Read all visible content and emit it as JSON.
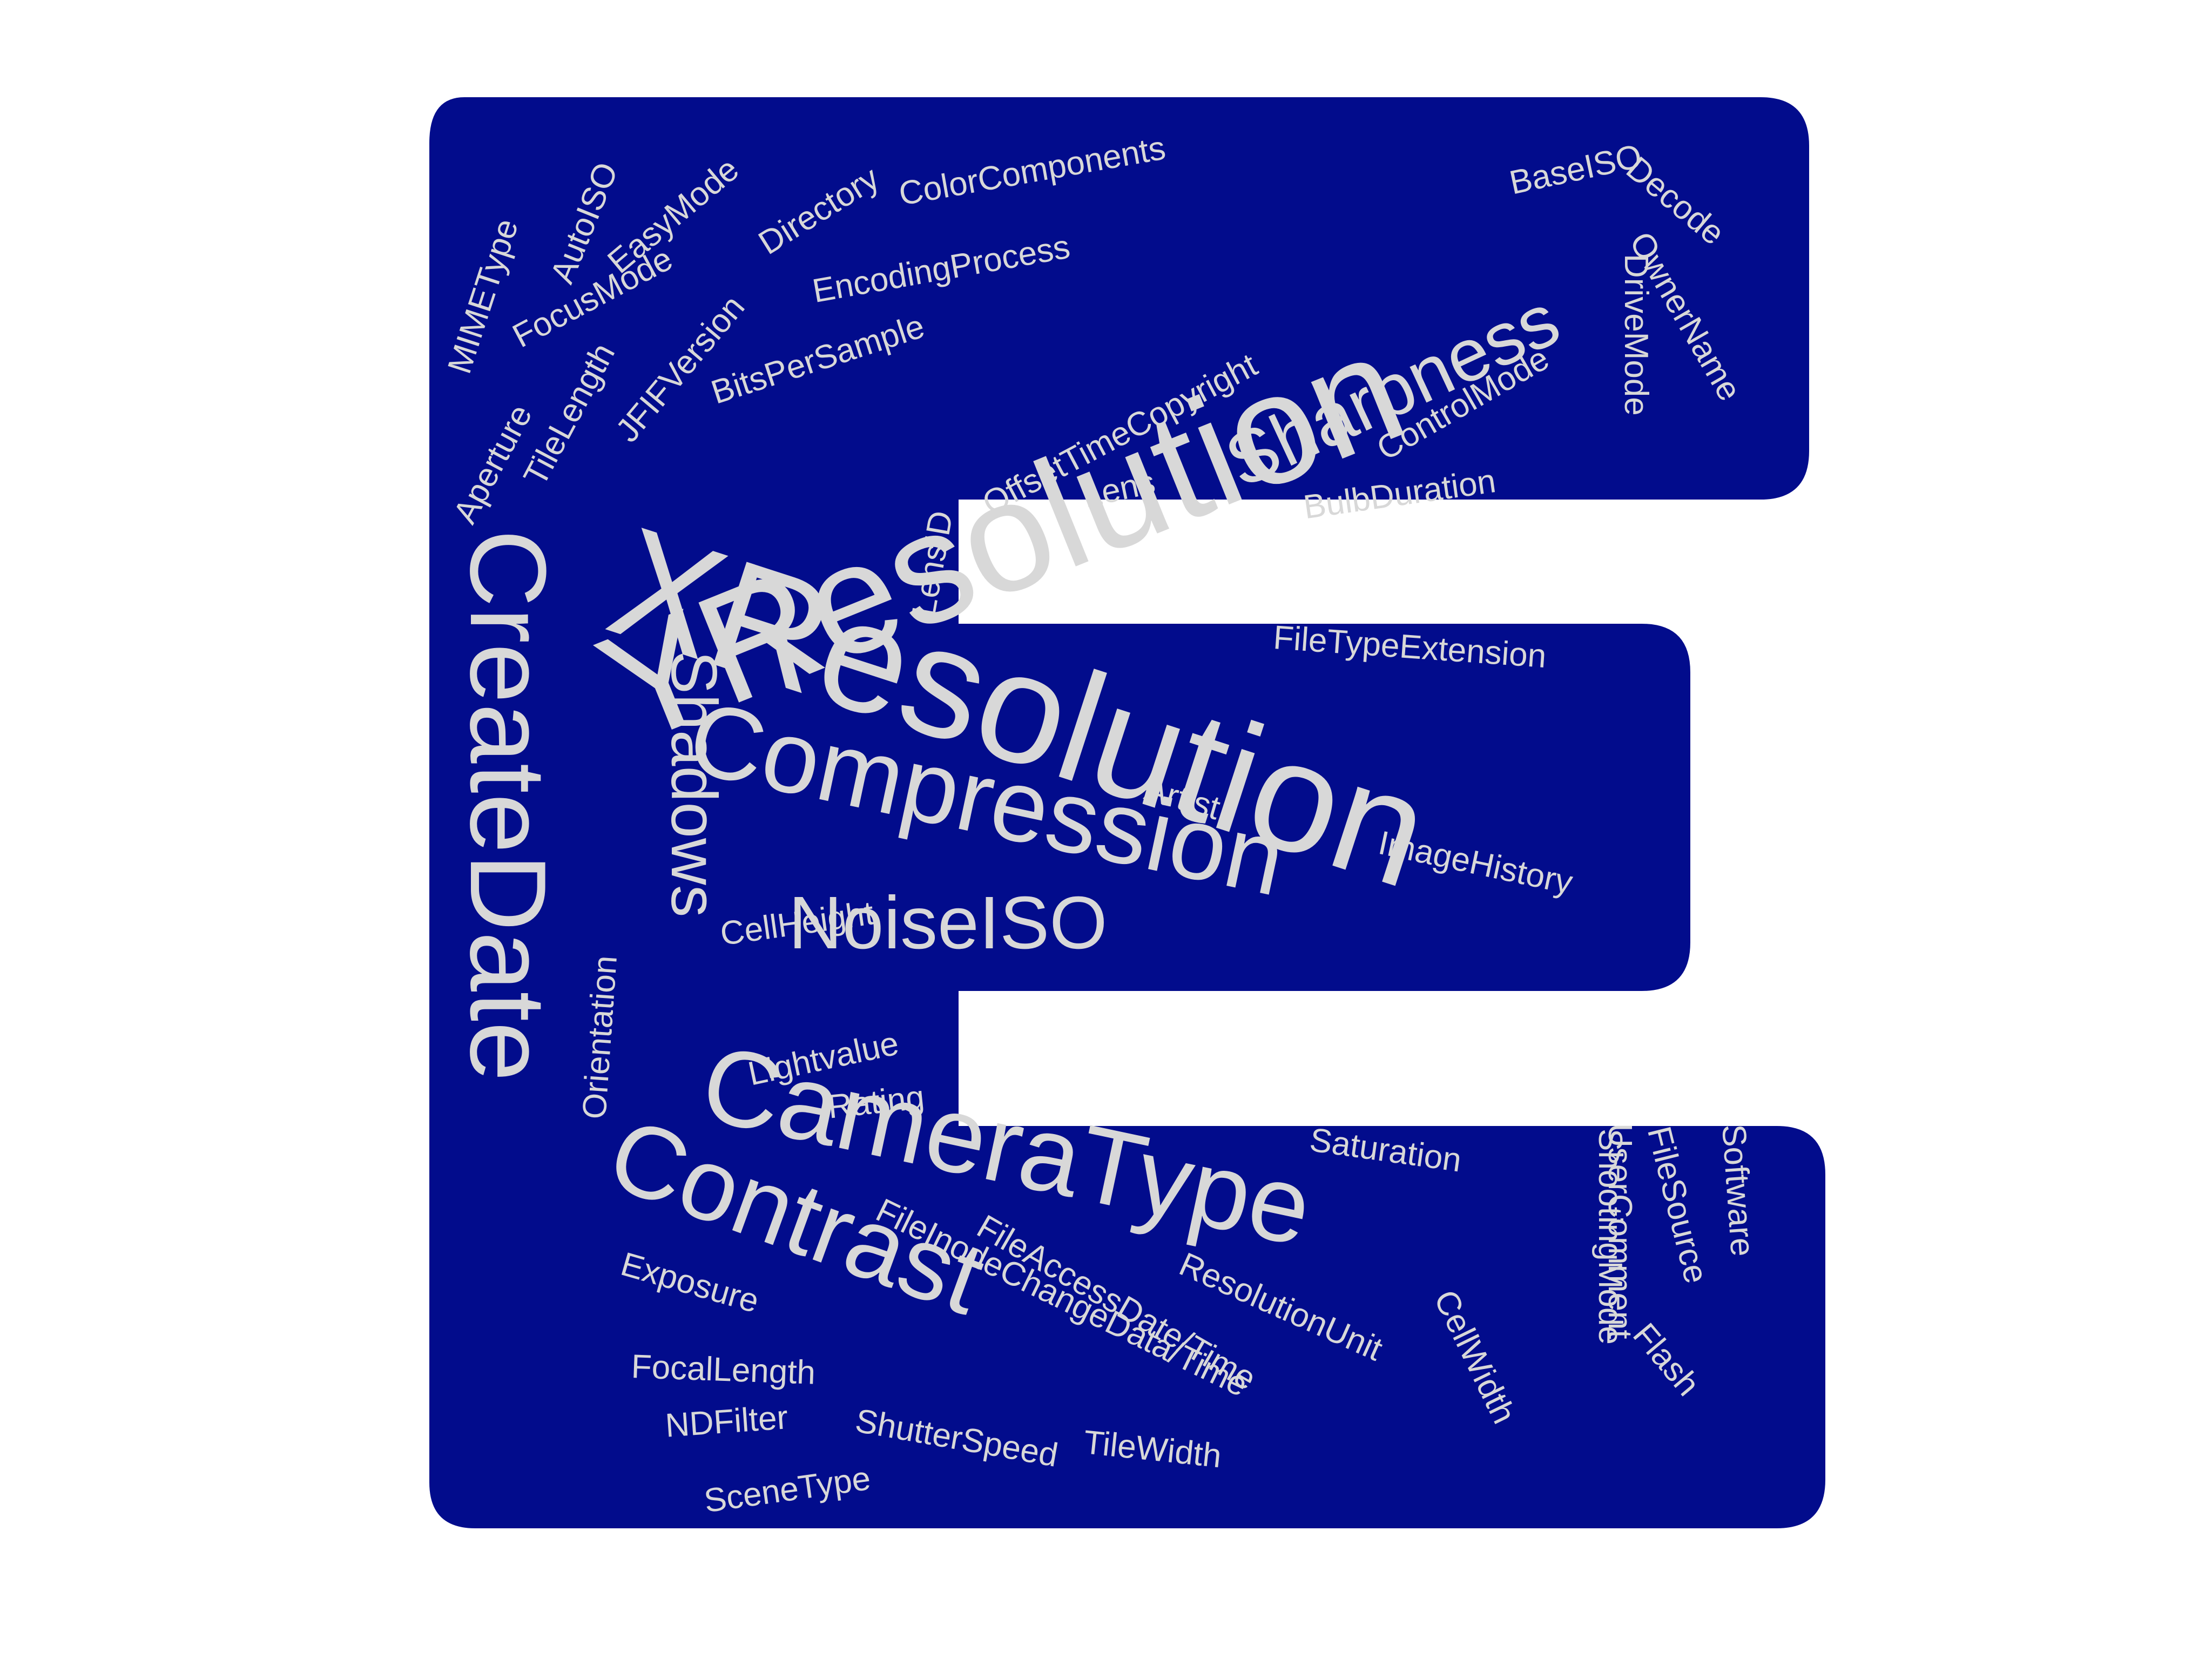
{
  "colors": {
    "background": "#ffffff",
    "shape_fill": "#020c8c",
    "word_color": "#d8d8d8"
  },
  "words": [
    {
      "text": "YResolution"
    },
    {
      "text": "XResolution"
    },
    {
      "text": "CreateDate"
    },
    {
      "text": "CameraType"
    },
    {
      "text": "Compression"
    },
    {
      "text": "Contrast"
    },
    {
      "text": "Sharpness"
    },
    {
      "text": "NoiseISO"
    },
    {
      "text": "Shadows"
    },
    {
      "text": "MIMEType"
    },
    {
      "text": "AutoISO"
    },
    {
      "text": "EasyMode"
    },
    {
      "text": "Directory"
    },
    {
      "text": "ColorComponents"
    },
    {
      "text": "BaseISO"
    },
    {
      "text": "Decode"
    },
    {
      "text": "OwnerName"
    },
    {
      "text": "FocusMode"
    },
    {
      "text": "EncodingProcess"
    },
    {
      "text": "JFIFVersion"
    },
    {
      "text": "TileLength"
    },
    {
      "text": "Aperture"
    },
    {
      "text": "BitsPerSample"
    },
    {
      "text": "OffsetTimeCopyright"
    },
    {
      "text": "ControlMode"
    },
    {
      "text": "DriveMode"
    },
    {
      "text": "BulbDuration"
    },
    {
      "text": "Lens"
    },
    {
      "text": "LensID"
    },
    {
      "text": "FileTypeExtension"
    },
    {
      "text": "Artist"
    },
    {
      "text": "ImageHistory"
    },
    {
      "text": "CellHeight"
    },
    {
      "text": "Orientation"
    },
    {
      "text": "Lightvalue"
    },
    {
      "text": "Rating"
    },
    {
      "text": "Saturation"
    },
    {
      "text": "ShootingMode"
    },
    {
      "text": "UserComment"
    },
    {
      "text": "FileSource"
    },
    {
      "text": "Software"
    },
    {
      "text": "Flash"
    },
    {
      "text": "FileAccessDate/Time"
    },
    {
      "text": "FileInodeChangeData/Time"
    },
    {
      "text": "ResolutionUnit"
    },
    {
      "text": "CellWidth"
    },
    {
      "text": "Exposure"
    },
    {
      "text": "FocalLength"
    },
    {
      "text": "NDFilter"
    },
    {
      "text": "ShutterSpeed"
    },
    {
      "text": "TileWidth"
    },
    {
      "text": "SceneType"
    }
  ]
}
